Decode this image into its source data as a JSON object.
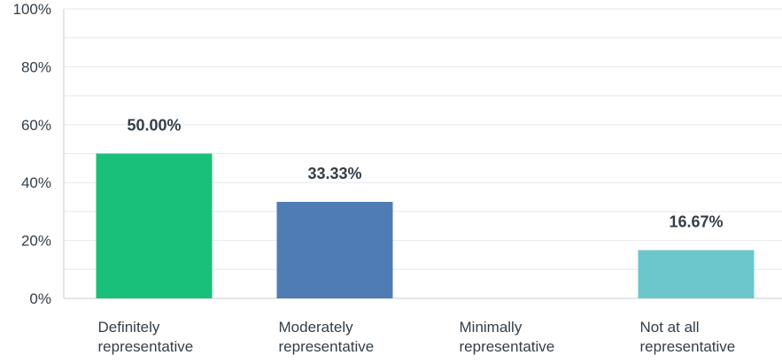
{
  "chart_data": {
    "type": "bar",
    "title": "",
    "xlabel": "",
    "ylabel": "",
    "categories": [
      [
        "Definitely",
        "representative"
      ],
      [
        "Moderately",
        "representative"
      ],
      [
        "Minimally",
        "representative"
      ],
      [
        "Not at all",
        "representative"
      ]
    ],
    "values": [
      50.0,
      33.33,
      0,
      16.67
    ],
    "data_labels": [
      "50.00%",
      "33.33%",
      "",
      "16.67%"
    ],
    "colors": [
      "#19c07a",
      "#4f7cb5",
      "#f48e3a",
      "#6bc7cb"
    ],
    "ylim": [
      0,
      100
    ],
    "yticks": [
      0,
      20,
      40,
      60,
      80,
      100
    ],
    "ytick_labels": [
      "0%",
      "20%",
      "40%",
      "60%",
      "80%",
      "100%"
    ],
    "grid": true,
    "minor_grid": true,
    "legend": "none"
  }
}
